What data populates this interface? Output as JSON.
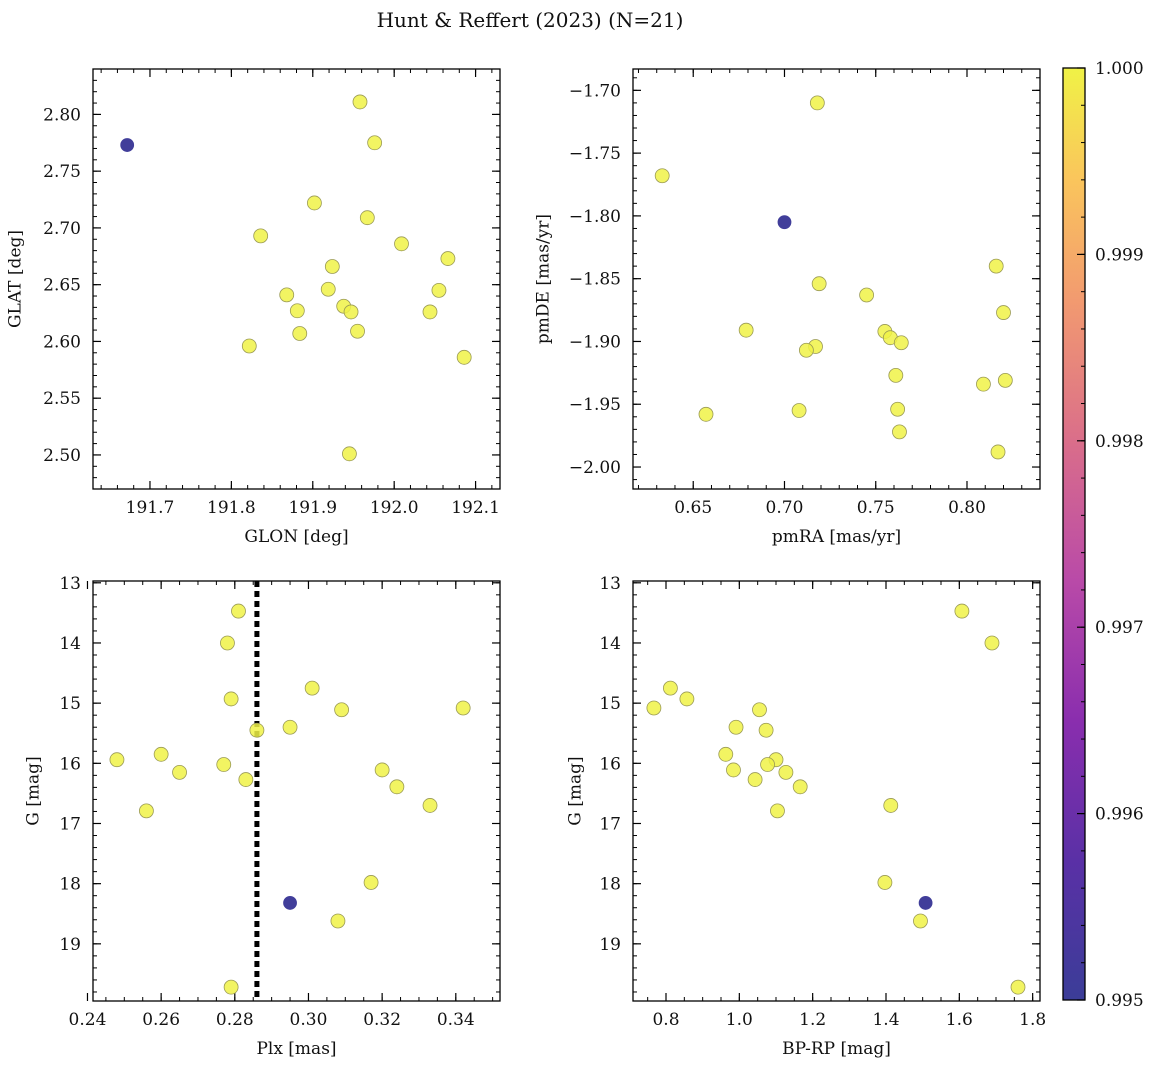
{
  "title": "Hunt & Reffert (2023) (N=21)",
  "colors": {
    "member_high": "#f0f246",
    "member_low": "#413e9a",
    "marker_edge": "#9a9a55",
    "vline": "#000000"
  },
  "colorbar": {
    "min": 0.995,
    "max": 1.0,
    "ticks": [
      "0.995",
      "0.996",
      "0.997",
      "0.998",
      "0.999",
      "1.000"
    ],
    "tick_values": [
      0.995,
      0.996,
      0.997,
      0.998,
      0.999,
      1.0
    ],
    "colormap": "plasma"
  },
  "chart_data": [
    {
      "type": "scatter",
      "xlabel": "GLON [deg]",
      "ylabel": "GLAT [deg]",
      "xlim": [
        191.63,
        192.13
      ],
      "ylim": [
        2.47,
        2.84
      ],
      "y_inverted": false,
      "xticks": [
        191.7,
        191.8,
        191.9,
        192.0,
        192.1
      ],
      "xtick_labels": [
        "191.7",
        "191.8",
        "191.9",
        "192.0",
        "192.1"
      ],
      "yticks": [
        2.5,
        2.55,
        2.6,
        2.65,
        2.7,
        2.75,
        2.8
      ],
      "ytick_labels": [
        "2.50",
        "2.55",
        "2.60",
        "2.65",
        "2.70",
        "2.75",
        "2.80"
      ],
      "x_minor_step": 0.02,
      "y_minor_step": 0.01,
      "points": [
        {
          "x": 191.672,
          "y": 2.773,
          "c": 0.995
        },
        {
          "x": 191.958,
          "y": 2.811,
          "c": 1.0
        },
        {
          "x": 191.976,
          "y": 2.775,
          "c": 1.0
        },
        {
          "x": 191.902,
          "y": 2.722,
          "c": 1.0
        },
        {
          "x": 191.967,
          "y": 2.709,
          "c": 1.0
        },
        {
          "x": 191.836,
          "y": 2.693,
          "c": 1.0
        },
        {
          "x": 192.009,
          "y": 2.686,
          "c": 1.0
        },
        {
          "x": 192.066,
          "y": 2.673,
          "c": 1.0
        },
        {
          "x": 191.924,
          "y": 2.666,
          "c": 1.0
        },
        {
          "x": 191.919,
          "y": 2.646,
          "c": 1.0
        },
        {
          "x": 192.055,
          "y": 2.645,
          "c": 1.0
        },
        {
          "x": 191.868,
          "y": 2.641,
          "c": 1.0
        },
        {
          "x": 191.938,
          "y": 2.631,
          "c": 1.0
        },
        {
          "x": 191.881,
          "y": 2.627,
          "c": 1.0
        },
        {
          "x": 191.947,
          "y": 2.626,
          "c": 1.0
        },
        {
          "x": 192.044,
          "y": 2.626,
          "c": 1.0
        },
        {
          "x": 191.955,
          "y": 2.609,
          "c": 1.0
        },
        {
          "x": 191.884,
          "y": 2.607,
          "c": 1.0
        },
        {
          "x": 191.822,
          "y": 2.596,
          "c": 1.0
        },
        {
          "x": 192.086,
          "y": 2.586,
          "c": 1.0
        },
        {
          "x": 191.945,
          "y": 2.501,
          "c": 1.0
        }
      ]
    },
    {
      "type": "scatter",
      "xlabel": "pmRA [mas/yr]",
      "ylabel": "pmDE [mas/yr]",
      "xlim": [
        0.617,
        0.84
      ],
      "ylim": [
        -2.0175,
        -1.683
      ],
      "y_inverted": false,
      "xticks": [
        0.65,
        0.7,
        0.75,
        0.8
      ],
      "xtick_labels": [
        "0.65",
        "0.70",
        "0.75",
        "0.80"
      ],
      "yticks": [
        -2.0,
        -1.95,
        -1.9,
        -1.85,
        -1.8,
        -1.75,
        -1.7
      ],
      "ytick_labels": [
        "−2.00",
        "−1.95",
        "−1.90",
        "−1.85",
        "−1.80",
        "−1.75",
        "−1.70"
      ],
      "x_minor_step": 0.01,
      "y_minor_step": 0.01,
      "points": [
        {
          "x": 0.7,
          "y": -1.805,
          "c": 0.995
        },
        {
          "x": 0.718,
          "y": -1.71,
          "c": 1.0
        },
        {
          "x": 0.633,
          "y": -1.768,
          "c": 1.0
        },
        {
          "x": 0.816,
          "y": -1.84,
          "c": 1.0
        },
        {
          "x": 0.719,
          "y": -1.854,
          "c": 1.0
        },
        {
          "x": 0.745,
          "y": -1.863,
          "c": 1.0
        },
        {
          "x": 0.82,
          "y": -1.877,
          "c": 1.0
        },
        {
          "x": 0.679,
          "y": -1.891,
          "c": 1.0
        },
        {
          "x": 0.755,
          "y": -1.892,
          "c": 1.0
        },
        {
          "x": 0.758,
          "y": -1.897,
          "c": 1.0
        },
        {
          "x": 0.764,
          "y": -1.901,
          "c": 1.0
        },
        {
          "x": 0.717,
          "y": -1.904,
          "c": 1.0
        },
        {
          "x": 0.712,
          "y": -1.907,
          "c": 1.0
        },
        {
          "x": 0.761,
          "y": -1.927,
          "c": 1.0
        },
        {
          "x": 0.821,
          "y": -1.931,
          "c": 1.0
        },
        {
          "x": 0.809,
          "y": -1.934,
          "c": 1.0
        },
        {
          "x": 0.762,
          "y": -1.954,
          "c": 1.0
        },
        {
          "x": 0.708,
          "y": -1.955,
          "c": 1.0
        },
        {
          "x": 0.657,
          "y": -1.958,
          "c": 1.0
        },
        {
          "x": 0.763,
          "y": -1.972,
          "c": 1.0
        },
        {
          "x": 0.817,
          "y": -1.988,
          "c": 1.0
        }
      ]
    },
    {
      "type": "scatter",
      "xlabel": "Plx [mas]",
      "ylabel": "G [mag]",
      "xlim": [
        0.2415,
        0.352
      ],
      "ylim": [
        19.95,
        12.97
      ],
      "y_inverted": true,
      "xticks": [
        0.24,
        0.26,
        0.28,
        0.3,
        0.32,
        0.34
      ],
      "xtick_labels": [
        "0.24",
        "0.26",
        "0.28",
        "0.30",
        "0.32",
        "0.34"
      ],
      "yticks": [
        13,
        14,
        15,
        16,
        17,
        18,
        19
      ],
      "ytick_labels": [
        "13",
        "14",
        "15",
        "16",
        "17",
        "18",
        "19"
      ],
      "x_minor_step": 0.005,
      "y_minor_step": 0.2,
      "vline": 0.286,
      "points": [
        {
          "x": 0.295,
          "y": 18.32,
          "c": 0.995
        },
        {
          "x": 0.281,
          "y": 13.47,
          "c": 1.0
        },
        {
          "x": 0.278,
          "y": 14.0,
          "c": 1.0
        },
        {
          "x": 0.301,
          "y": 14.75,
          "c": 1.0
        },
        {
          "x": 0.279,
          "y": 14.93,
          "c": 1.0
        },
        {
          "x": 0.342,
          "y": 15.08,
          "c": 1.0
        },
        {
          "x": 0.309,
          "y": 15.11,
          "c": 1.0
        },
        {
          "x": 0.295,
          "y": 15.4,
          "c": 1.0
        },
        {
          "x": 0.286,
          "y": 15.45,
          "c": 1.0
        },
        {
          "x": 0.26,
          "y": 15.85,
          "c": 1.0
        },
        {
          "x": 0.248,
          "y": 15.94,
          "c": 1.0
        },
        {
          "x": 0.277,
          "y": 16.02,
          "c": 1.0
        },
        {
          "x": 0.32,
          "y": 16.11,
          "c": 1.0
        },
        {
          "x": 0.265,
          "y": 16.15,
          "c": 1.0
        },
        {
          "x": 0.283,
          "y": 16.27,
          "c": 1.0
        },
        {
          "x": 0.324,
          "y": 16.39,
          "c": 1.0
        },
        {
          "x": 0.333,
          "y": 16.7,
          "c": 1.0
        },
        {
          "x": 0.256,
          "y": 16.79,
          "c": 1.0
        },
        {
          "x": 0.317,
          "y": 17.98,
          "c": 1.0
        },
        {
          "x": 0.308,
          "y": 18.62,
          "c": 1.0
        },
        {
          "x": 0.279,
          "y": 19.72,
          "c": 1.0
        }
      ]
    },
    {
      "type": "scatter",
      "xlabel": "BP-RP [mag]",
      "ylabel": "G [mag]",
      "xlim": [
        0.71,
        1.82
      ],
      "ylim": [
        19.95,
        12.97
      ],
      "y_inverted": true,
      "xticks": [
        0.8,
        1.0,
        1.2,
        1.4,
        1.6,
        1.8
      ],
      "xtick_labels": [
        "0.8",
        "1.0",
        "1.2",
        "1.4",
        "1.6",
        "1.8"
      ],
      "yticks": [
        13,
        14,
        15,
        16,
        17,
        18,
        19
      ],
      "ytick_labels": [
        "13",
        "14",
        "15",
        "16",
        "17",
        "18",
        "19"
      ],
      "x_minor_step": 0.05,
      "y_minor_step": 0.2,
      "points": [
        {
          "x": 1.508,
          "y": 18.32,
          "c": 0.995
        },
        {
          "x": 1.607,
          "y": 13.47,
          "c": 1.0
        },
        {
          "x": 1.689,
          "y": 14.0,
          "c": 1.0
        },
        {
          "x": 0.812,
          "y": 14.75,
          "c": 1.0
        },
        {
          "x": 0.857,
          "y": 14.93,
          "c": 1.0
        },
        {
          "x": 0.767,
          "y": 15.08,
          "c": 1.0
        },
        {
          "x": 1.055,
          "y": 15.11,
          "c": 1.0
        },
        {
          "x": 0.991,
          "y": 15.4,
          "c": 1.0
        },
        {
          "x": 1.073,
          "y": 15.45,
          "c": 1.0
        },
        {
          "x": 0.963,
          "y": 15.85,
          "c": 1.0
        },
        {
          "x": 1.1,
          "y": 15.94,
          "c": 1.0
        },
        {
          "x": 1.077,
          "y": 16.02,
          "c": 1.0
        },
        {
          "x": 0.984,
          "y": 16.11,
          "c": 1.0
        },
        {
          "x": 1.127,
          "y": 16.15,
          "c": 1.0
        },
        {
          "x": 1.043,
          "y": 16.27,
          "c": 1.0
        },
        {
          "x": 1.166,
          "y": 16.39,
          "c": 1.0
        },
        {
          "x": 1.413,
          "y": 16.7,
          "c": 1.0
        },
        {
          "x": 1.104,
          "y": 16.79,
          "c": 1.0
        },
        {
          "x": 1.397,
          "y": 17.98,
          "c": 1.0
        },
        {
          "x": 1.494,
          "y": 18.62,
          "c": 1.0
        },
        {
          "x": 1.76,
          "y": 19.72,
          "c": 1.0
        }
      ]
    }
  ]
}
